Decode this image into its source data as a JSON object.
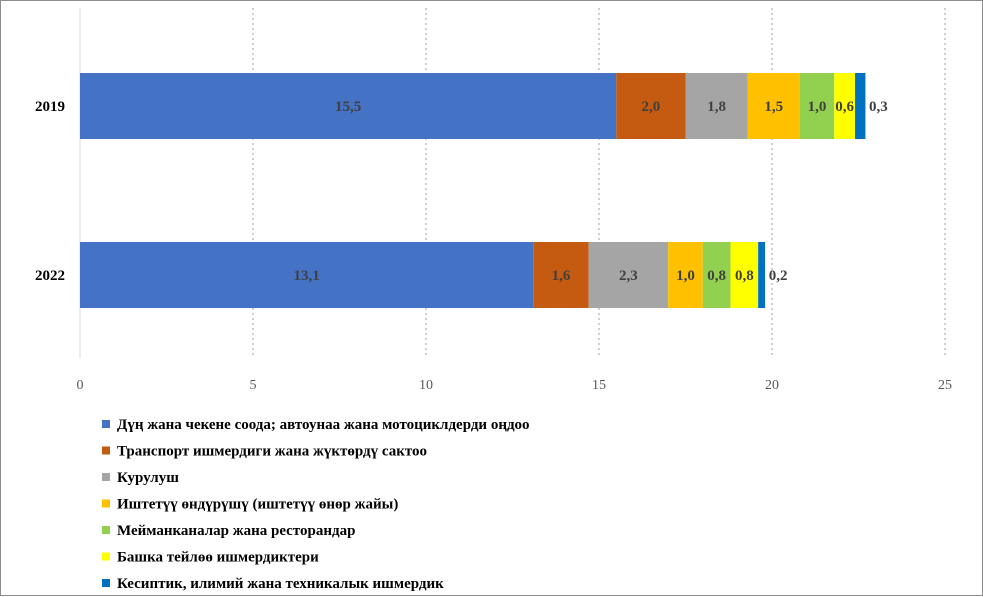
{
  "chart_data": {
    "type": "bar",
    "orientation": "horizontal",
    "stacked": true,
    "categories": [
      "2019",
      "2022"
    ],
    "series": [
      {
        "name": "Дүң жана чекене соода; автоунаа жана мотоциклдерди оңдоо",
        "color": "#4472C4",
        "values": [
          15.5,
          13.1
        ],
        "labels": [
          "15,5",
          "13,1"
        ]
      },
      {
        "name": "Транспорт ишмердиги жана жүктөрдү сактоо",
        "color": "#C55A11",
        "values": [
          2.0,
          1.6
        ],
        "labels": [
          "2,0",
          "1,6"
        ]
      },
      {
        "name": "Курулуш",
        "color": "#A5A5A5",
        "values": [
          1.8,
          2.3
        ],
        "labels": [
          "1,8",
          "2,3"
        ]
      },
      {
        "name": "Иштетүү өндүрүшү (иштетүү өнөр жайы)",
        "color": "#FFC000",
        "values": [
          1.5,
          1.0
        ],
        "labels": [
          "1,5",
          "1,0"
        ]
      },
      {
        "name": "Мейманканалар жана ресторандар",
        "color": "#92D050",
        "values": [
          1.0,
          0.8
        ],
        "labels": [
          "1,0",
          "0,8"
        ]
      },
      {
        "name": "Башка тейлөө ишмердиктери",
        "color": "#FFFF00",
        "values": [
          0.6,
          0.8
        ],
        "labels": [
          "0,6",
          "0,8"
        ]
      },
      {
        "name": "Кесиптик, илимий жана техникалык ишмердик",
        "color": "#0070C0",
        "values": [
          0.3,
          0.2
        ],
        "labels": [
          "0,3",
          "0,2"
        ]
      }
    ],
    "xlim": [
      0,
      25
    ],
    "x_ticks": [
      "0",
      "5",
      "10",
      "15",
      "20",
      "25"
    ],
    "grid": "vertical dotted",
    "legend": "bottom-left"
  }
}
